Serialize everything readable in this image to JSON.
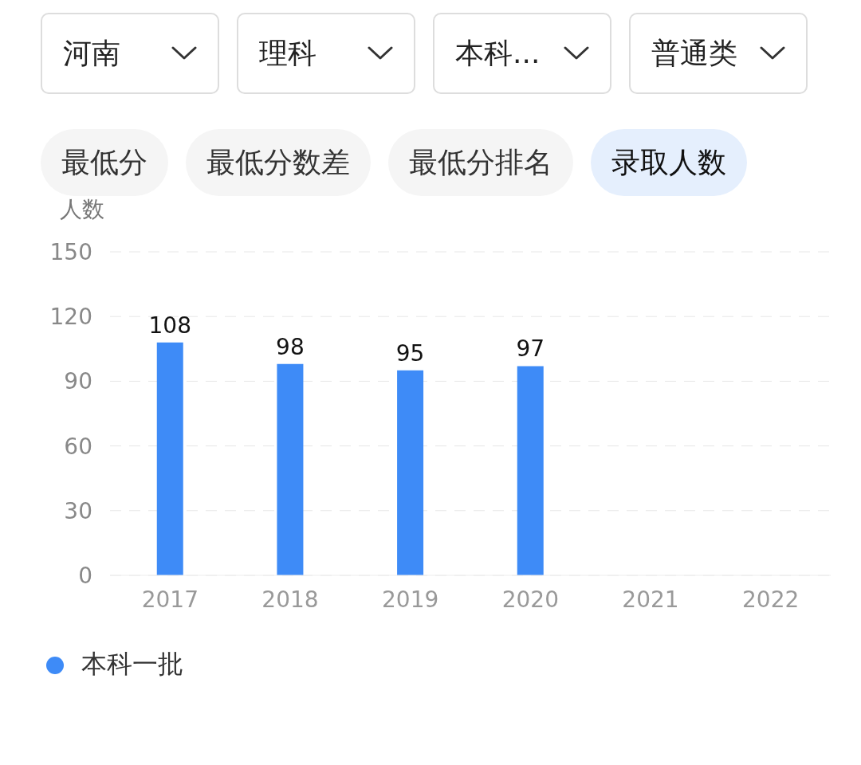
{
  "chart_data": {
    "type": "bar",
    "ylabel": "人数",
    "categories": [
      "2017",
      "2018",
      "2019",
      "2020",
      "2021",
      "2022"
    ],
    "series": [
      {
        "name": "本科一批",
        "color": "#3e8bf7",
        "values": [
          108,
          98,
          95,
          97,
          null,
          null
        ]
      }
    ],
    "ylim": [
      0,
      150
    ],
    "yticks": [
      0,
      30,
      60,
      90,
      120,
      150
    ],
    "grid": "y",
    "legend": "bottom left",
    "data_labels": true,
    "annotations": [
      "河南",
      "理科",
      "本科...",
      "普通类",
      "最低分",
      "最低分数差",
      "最低分排名",
      "录取人数"
    ]
  }
}
